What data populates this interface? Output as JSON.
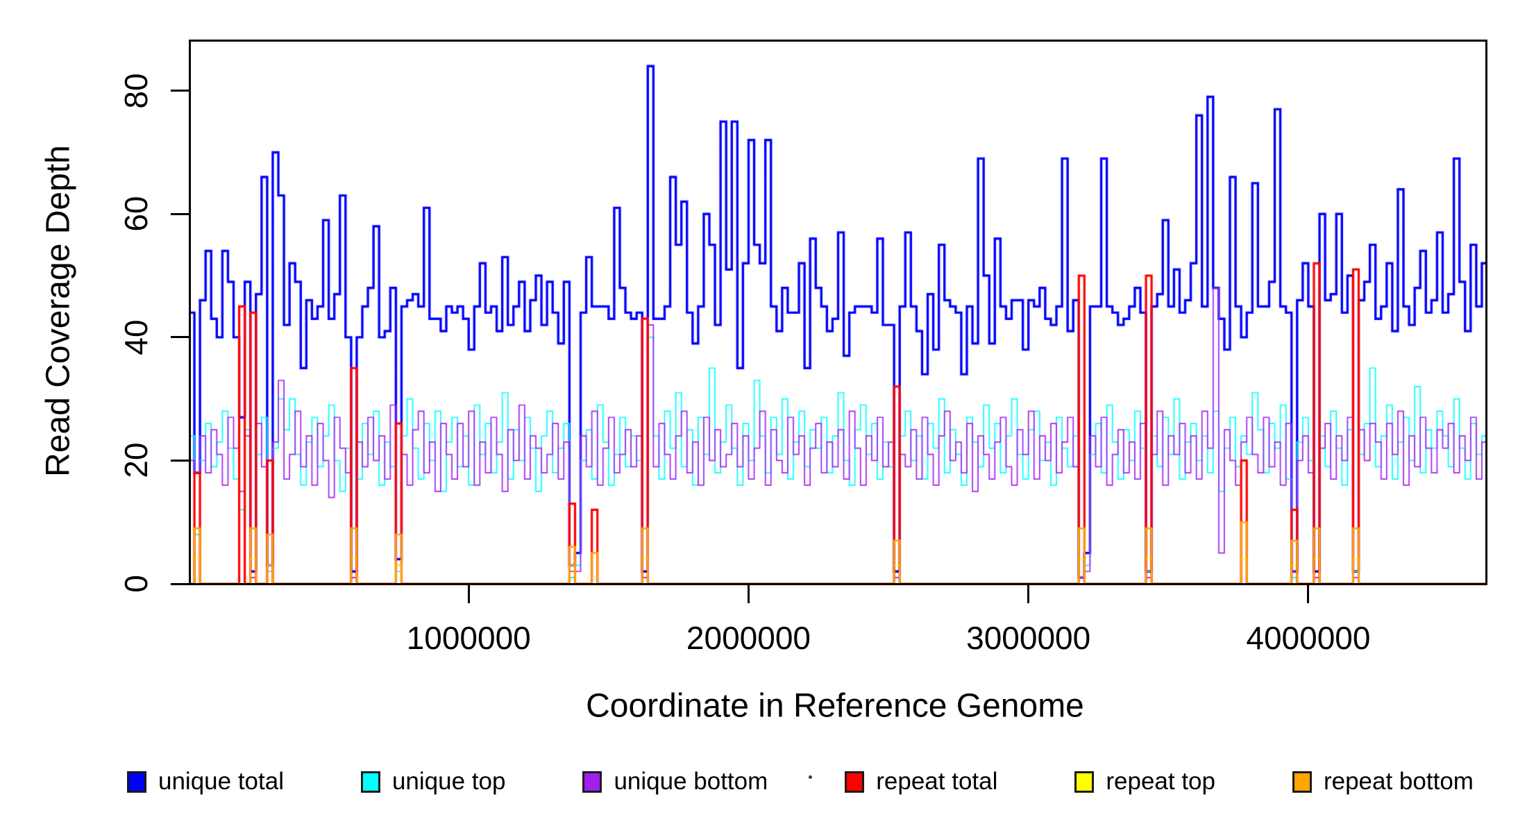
{
  "figure": {
    "background": "#FFFFFF"
  },
  "chart_data": {
    "type": "line",
    "subtype": "step",
    "title": "",
    "xlabel": "Coordinate in Reference Genome",
    "ylabel": "Read Coverage Depth",
    "xlim": [
      0,
      4640000
    ],
    "ylim": [
      0,
      88.3
    ],
    "grid": false,
    "legend_position": "bottom",
    "x_tick_values": [
      1000000,
      2000000,
      3000000,
      4000000
    ],
    "x_tick_labels": [
      "1000000",
      "2000000",
      "3000000",
      "4000000"
    ],
    "y_tick_values": [
      0,
      20,
      40,
      60,
      80
    ],
    "y_tick_labels": [
      "0",
      "20",
      "40",
      "60",
      "80"
    ],
    "bins": 232,
    "bin_size": 20000,
    "x_start": 0,
    "series": [
      {
        "name": "unique total",
        "color": "#0000FF",
        "line_width": 3.4,
        "values": [
          44,
          18,
          46,
          54,
          43,
          40,
          54,
          49,
          40,
          27,
          49,
          2,
          47,
          66,
          3,
          70,
          63,
          42,
          52,
          49,
          35,
          46,
          43,
          45,
          59,
          43,
          47,
          63,
          40,
          2,
          40,
          45,
          48,
          58,
          40,
          41,
          48,
          4,
          45,
          46,
          47,
          45,
          61,
          43,
          43,
          41,
          45,
          44,
          45,
          43,
          38,
          45,
          52,
          44,
          45,
          41,
          53,
          42,
          45,
          49,
          41,
          46,
          50,
          42,
          49,
          44,
          39,
          49,
          3,
          5,
          44,
          53,
          45,
          45,
          45,
          43,
          61,
          48,
          44,
          43,
          44,
          2,
          84,
          43,
          43,
          45,
          66,
          55,
          62,
          44,
          39,
          45,
          60,
          55,
          42,
          75,
          51,
          75,
          35,
          52,
          72,
          55,
          52,
          72,
          45,
          41,
          48,
          44,
          44,
          52,
          35,
          56,
          48,
          45,
          41,
          43,
          57,
          37,
          44,
          45,
          45,
          45,
          44,
          56,
          42,
          42,
          2,
          45,
          57,
          45,
          41,
          34,
          47,
          38,
          55,
          46,
          45,
          44,
          34,
          45,
          39,
          69,
          50,
          39,
          56,
          45,
          43,
          46,
          46,
          38,
          46,
          45,
          48,
          43,
          42,
          45,
          69,
          41,
          46,
          1,
          5,
          45,
          45,
          69,
          45,
          44,
          42,
          43,
          45,
          48,
          44,
          2,
          45,
          47,
          59,
          45,
          51,
          44,
          46,
          52,
          76,
          45,
          79,
          48,
          43,
          38,
          66,
          45,
          40,
          44,
          65,
          45,
          45,
          49,
          77,
          45,
          44,
          2,
          46,
          52,
          45,
          2,
          60,
          46,
          47,
          60,
          44,
          50,
          2,
          46,
          49,
          55,
          43,
          45,
          52,
          41,
          64,
          45,
          42,
          48,
          54,
          44,
          46,
          57,
          44,
          47,
          69,
          49,
          41,
          55,
          45,
          52
        ]
      },
      {
        "name": "unique top",
        "color": "#00FFFF",
        "line_width": 1.7,
        "values": [
          24,
          8,
          20,
          26,
          19,
          23,
          28,
          22,
          17,
          12,
          25,
          1,
          21,
          27,
          2,
          22,
          30,
          25,
          30,
          21,
          16,
          23,
          27,
          19,
          24,
          29,
          20,
          15,
          22,
          1,
          17,
          26,
          21,
          28,
          16,
          23,
          19,
          2,
          24,
          30,
          22,
          17,
          26,
          20,
          28,
          15,
          23,
          27,
          19,
          24,
          16,
          29,
          21,
          26,
          18,
          23,
          31,
          17,
          25,
          20,
          27,
          22,
          15,
          24,
          28,
          18,
          22,
          26,
          1,
          3,
          20,
          25,
          17,
          29,
          23,
          16,
          21,
          27,
          19,
          24,
          20,
          1,
          40,
          24,
          17,
          28,
          22,
          31,
          19,
          25,
          16,
          27,
          21,
          35,
          18,
          23,
          29,
          22,
          16,
          26,
          20,
          33,
          24,
          18,
          27,
          21,
          30,
          17,
          23,
          28,
          19,
          25,
          22,
          27,
          18,
          24,
          31,
          20,
          16,
          25,
          29,
          21,
          26,
          17,
          23,
          19,
          1,
          24,
          28,
          20,
          24,
          17,
          26,
          22,
          30,
          18,
          25,
          21,
          16,
          27,
          23,
          19,
          29,
          22,
          26,
          18,
          24,
          30,
          21,
          17,
          25,
          28,
          20,
          23,
          16,
          27,
          22,
          19,
          24,
          1,
          3,
          21,
          26,
          18,
          29,
          23,
          17,
          25,
          20,
          28,
          22,
          2,
          24,
          19,
          27,
          21,
          30,
          17,
          23,
          26,
          20,
          24,
          18,
          28,
          15,
          22,
          27,
          19,
          24,
          21,
          31,
          25,
          18,
          26,
          22,
          29,
          17,
          1,
          23,
          27,
          20,
          1,
          24,
          19,
          28,
          22,
          16,
          25,
          2,
          21,
          26,
          35,
          19,
          24,
          29,
          17,
          23,
          27,
          20,
          32,
          18,
          25,
          22,
          28,
          24,
          19,
          30,
          22,
          17,
          26,
          21,
          24
        ]
      },
      {
        "name": "unique bottom",
        "color": "#A020F0",
        "line_width": 1.7,
        "values": [
          20,
          9,
          24,
          18,
          25,
          21,
          16,
          27,
          22,
          15,
          24,
          1,
          26,
          19,
          3,
          23,
          33,
          17,
          21,
          28,
          19,
          24,
          16,
          26,
          20,
          14,
          27,
          22,
          18,
          1,
          23,
          19,
          27,
          20,
          24,
          17,
          29,
          3,
          21,
          16,
          25,
          28,
          18,
          23,
          15,
          26,
          21,
          17,
          26,
          19,
          28,
          16,
          23,
          18,
          27,
          21,
          15,
          25,
          20,
          29,
          17,
          24,
          22,
          18,
          21,
          26,
          17,
          23,
          2,
          2,
          24,
          19,
          28,
          16,
          22,
          27,
          18,
          21,
          25,
          19,
          24,
          1,
          42,
          19,
          26,
          21,
          17,
          24,
          28,
          18,
          23,
          16,
          27,
          20,
          25,
          19,
          21,
          26,
          19,
          24,
          17,
          22,
          28,
          16,
          25,
          20,
          18,
          27,
          21,
          24,
          16,
          22,
          26,
          18,
          23,
          19,
          25,
          17,
          28,
          22,
          16,
          24,
          20,
          27,
          19,
          23,
          1,
          21,
          19,
          25,
          17,
          27,
          21,
          16,
          24,
          28,
          20,
          23,
          18,
          26,
          15,
          24,
          21,
          17,
          23,
          27,
          19,
          16,
          25,
          21,
          28,
          17,
          24,
          20,
          26,
          18,
          23,
          27,
          19,
          1,
          2,
          24,
          19,
          27,
          16,
          21,
          25,
          18,
          23,
          17,
          26,
          1,
          21,
          28,
          16,
          24,
          21,
          26,
          18,
          24,
          17,
          28,
          22,
          48,
          5,
          25,
          20,
          16,
          23,
          27,
          21,
          18,
          27,
          19,
          23,
          16,
          26,
          2,
          20,
          24,
          18,
          1,
          22,
          26,
          17,
          24,
          20,
          27,
          1,
          25,
          20,
          26,
          23,
          17,
          26,
          21,
          28,
          16,
          24,
          19,
          27,
          22,
          18,
          25,
          22,
          26,
          18,
          24,
          20,
          27,
          17,
          23
        ]
      },
      {
        "name": "repeat total",
        "color": "#FF0000",
        "line_width": 3.2,
        "baseline": 0,
        "spikes": {
          "1": 18,
          "9": 45,
          "11": 44,
          "14": 20,
          "29": 35,
          "37": 26,
          "68": 13,
          "72": 12,
          "81": 43,
          "126": 32,
          "159": 50,
          "171": 50,
          "188": 20,
          "197": 12,
          "201": 52,
          "208": 51
        }
      },
      {
        "name": "repeat top",
        "color": "#FFFF00",
        "line_width": 1.7,
        "baseline": 0,
        "spikes": {
          "1": 4,
          "11": 4,
          "14": 3,
          "29": 4,
          "37": 3,
          "68": 3,
          "81": 4,
          "126": 3,
          "159": 4,
          "171": 4,
          "188": 4,
          "197": 3,
          "201": 4,
          "208": 4
        }
      },
      {
        "name": "repeat bottom",
        "color": "#FFA500",
        "line_width": 2.6,
        "baseline": 0,
        "spikes": {
          "1": 9,
          "11": 9,
          "14": 8,
          "29": 9,
          "37": 8,
          "68": 6,
          "72": 5,
          "81": 9,
          "126": 7,
          "159": 9,
          "171": 9,
          "188": 10,
          "197": 7,
          "201": 9,
          "208": 9
        }
      }
    ]
  }
}
